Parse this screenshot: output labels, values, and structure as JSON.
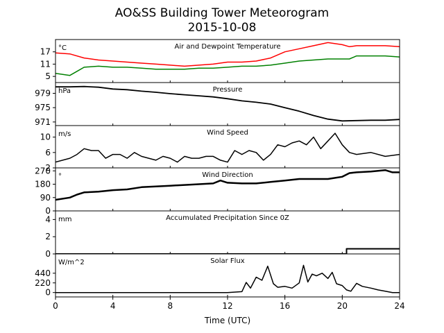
{
  "figure": {
    "title": "AO&SS Building Tower Meteorogram",
    "date": "2015-10-08",
    "xlabel": "Time (UTC)"
  },
  "chart_data": {
    "type": "line",
    "x_range": [
      0,
      24
    ],
    "x_ticks": [
      0,
      4,
      8,
      12,
      16,
      20,
      24
    ],
    "panels": [
      {
        "id": "temp",
        "title": "Air and Dewpoint Temperature",
        "unit": "°C",
        "ylim": [
          2,
          23
        ],
        "yticks": [
          5,
          11,
          17
        ],
        "series": [
          {
            "color": "#ff0000",
            "width": 1.5,
            "x": [
              0,
              1,
              2,
              3,
              4,
              5,
              6,
              7,
              8,
              9,
              10,
              11,
              12,
              13,
              14,
              15,
              16,
              17,
              18,
              19,
              19.5,
              20,
              20.5,
              21,
              22,
              23,
              24
            ],
            "y": [
              16.5,
              16,
              14,
              13,
              12.5,
              12,
              11.5,
              11,
              10.5,
              10,
              10.5,
              11,
              12,
              12,
              12.5,
              14,
              17,
              18.5,
              20,
              21.5,
              21,
              20.5,
              19.5,
              20,
              20,
              20,
              19.5
            ]
          },
          {
            "color": "#008000",
            "width": 1.5,
            "x": [
              0,
              1,
              1.5,
              2,
              3,
              4,
              5,
              6,
              7,
              8,
              9,
              10,
              11,
              12,
              13,
              14,
              15,
              16,
              17,
              18,
              19,
              20,
              20.5,
              21,
              22,
              23,
              24
            ],
            "y": [
              6.5,
              5.5,
              7.5,
              9.5,
              10,
              9.5,
              9.5,
              9,
              8.5,
              8.5,
              8.5,
              9,
              9,
              9.5,
              10,
              10,
              10.5,
              11.5,
              12.5,
              13,
              13.5,
              13.5,
              13.5,
              15,
              15,
              15,
              14.5
            ]
          }
        ]
      },
      {
        "id": "pressure",
        "title": "Pressure",
        "unit": "hPa",
        "ylim": [
          970,
          982
        ],
        "yticks": [
          971,
          975,
          979
        ],
        "series": [
          {
            "color": "#000000",
            "width": 1.8,
            "x": [
              0,
              1,
              2,
              3,
              4,
              5,
              6,
              7,
              8,
              9,
              10,
              11,
              12,
              13,
              14,
              15,
              16,
              17,
              18,
              19,
              20,
              21,
              22,
              23,
              24
            ],
            "y": [
              980.8,
              980.8,
              980.9,
              980.7,
              980.2,
              980,
              979.6,
              979.3,
              978.9,
              978.6,
              978.3,
              978,
              977.5,
              976.9,
              976.5,
              976,
              975,
              974,
              972.8,
              971.8,
              971.3,
              971.4,
              971.5,
              971.5,
              971.7
            ]
          }
        ]
      },
      {
        "id": "speed",
        "title": "Wind Speed",
        "unit": "m/s",
        "ylim": [
          2,
          13
        ],
        "yticks": [
          2,
          6,
          10
        ],
        "series": [
          {
            "color": "#000000",
            "width": 1.5,
            "x": [
              0,
              1,
              1.5,
              2,
              2.5,
              3,
              3.5,
              4,
              4.5,
              5,
              5.5,
              6,
              6.5,
              7,
              7.5,
              8,
              8.5,
              9,
              9.5,
              10,
              10.5,
              11,
              11.5,
              12,
              12.5,
              13,
              13.5,
              14,
              14.5,
              15,
              15.5,
              16,
              16.5,
              17,
              17.5,
              18,
              18.5,
              19,
              19.5,
              20,
              20.5,
              21,
              22,
              23,
              24
            ],
            "y": [
              3.5,
              4.5,
              5.5,
              7,
              6.5,
              6.5,
              4.5,
              5.5,
              5.5,
              4.5,
              6,
              5,
              4.5,
              4,
              5,
              4.5,
              3.5,
              5,
              4.5,
              4.5,
              5,
              5,
              4,
              3.5,
              6.5,
              5.5,
              6.5,
              6,
              4,
              5.5,
              8,
              7.5,
              8.5,
              9,
              8,
              10,
              7,
              9,
              11,
              8,
              6,
              5.5,
              6,
              5,
              5.5
            ]
          }
        ]
      },
      {
        "id": "direction",
        "title": "Wind Direction",
        "unit": "°",
        "ylim": [
          0,
          290
        ],
        "yticks": [
          0,
          90,
          180,
          270
        ],
        "series": [
          {
            "color": "#000000",
            "width": 2.5,
            "x": [
              0,
              1,
              1.5,
              2,
              3,
              4,
              5,
              6,
              7,
              8,
              9,
              10,
              11,
              11.5,
              12,
              13,
              14,
              15,
              16,
              17,
              18,
              19,
              20,
              20.5,
              21,
              22,
              23,
              23.5,
              24
            ],
            "y": [
              75,
              90,
              110,
              125,
              130,
              140,
              145,
              160,
              165,
              170,
              175,
              180,
              185,
              205,
              190,
              185,
              185,
              195,
              205,
              215,
              215,
              215,
              230,
              255,
              260,
              265,
              275,
              260,
              260
            ]
          }
        ]
      },
      {
        "id": "precip",
        "title": "Accumulated Precipitation Since 0Z",
        "unit": "mm",
        "ylim": [
          0,
          5
        ],
        "yticks": [
          0,
          2,
          4
        ],
        "series": [
          {
            "color": "#000000",
            "width": 2,
            "x": [
              0,
              20.3,
              20.3,
              24
            ],
            "y": [
              0,
              0,
              0.6,
              0.6
            ]
          }
        ]
      },
      {
        "id": "solar",
        "title": "Solar Flux",
        "unit": "W/m^2",
        "ylim": [
          -100,
          880
        ],
        "yticks": [
          0,
          220,
          440
        ],
        "series": [
          {
            "color": "#000000",
            "width": 1.5,
            "x": [
              0,
              12,
              13,
              13.3,
              13.6,
              14,
              14.4,
              14.8,
              15.2,
              15.5,
              16,
              16.5,
              17,
              17.3,
              17.6,
              17.9,
              18.2,
              18.6,
              19,
              19.3,
              19.6,
              20,
              20.3,
              20.6,
              21,
              21.4,
              22,
              22.5,
              23,
              23.5,
              24
            ],
            "y": [
              0,
              0,
              20,
              230,
              100,
              350,
              280,
              600,
              200,
              120,
              140,
              100,
              220,
              620,
              240,
              420,
              380,
              440,
              320,
              460,
              200,
              160,
              60,
              30,
              210,
              140,
              100,
              60,
              30,
              0,
              0
            ]
          }
        ]
      }
    ]
  }
}
